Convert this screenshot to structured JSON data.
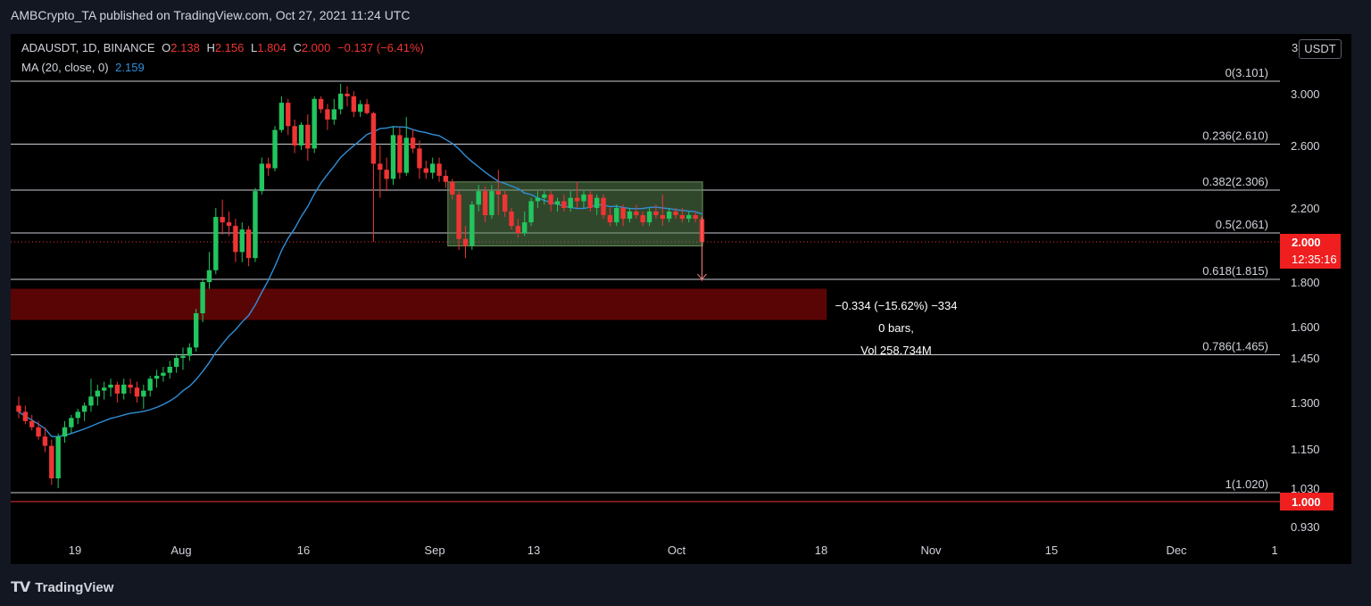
{
  "publish_line": "AMBCrypto_TA published on TradingView.com, Oct 27, 2021 11:24 UTC",
  "header": {
    "symbol": "ADAUSDT, 1D, BINANCE",
    "o_label": "O",
    "o": "2.138",
    "h_label": "H",
    "h": "2.156",
    "l_label": "L",
    "l": "1.804",
    "c_label": "C",
    "c": "2.000",
    "change": "−0.137 (−6.41%)"
  },
  "ma": {
    "label": "MA (20, close, 0)",
    "value": "2.159"
  },
  "currency_button": "USDT",
  "currency_prefix": "3",
  "price_tag": {
    "price": "2.000",
    "countdown": "12:35:16"
  },
  "support_tag": "1.000",
  "footer_brand": "TradingView",
  "colors": {
    "up": "#26a69a",
    "upbright": "#22c55e",
    "down": "#ef3434",
    "ma": "#2f8fd8",
    "zone": "#5a0505",
    "box": "#3c5a36",
    "grid": "#d1d4dc"
  },
  "chart_data": {
    "type": "candlestick",
    "symbol": "ADAUSDT",
    "interval": "1D",
    "exchange": "BINANCE",
    "yticks": [
      "3.000",
      "2.600",
      "2.200",
      "1.800",
      "1.600",
      "1.450",
      "1.300",
      "1.150",
      "1.030",
      "0.930"
    ],
    "ytick_values": [
      3.0,
      2.6,
      2.2,
      1.8,
      1.6,
      1.45,
      1.3,
      1.15,
      1.03,
      0.93
    ],
    "xticks": [
      "19",
      "Aug",
      "16",
      "Sep",
      "13",
      "Oct",
      "18",
      "Nov",
      "15",
      "Dec",
      "1"
    ],
    "fib_levels": [
      {
        "label": "0(3.101)",
        "value": 3.101
      },
      {
        "label": "0.236(2.610)",
        "value": 2.61
      },
      {
        "label": "0.382(2.306)",
        "value": 2.306
      },
      {
        "label": "0.5(2.061)",
        "value": 2.061
      },
      {
        "label": "0.618(1.815)",
        "value": 1.815
      },
      {
        "label": "0.786(1.465)",
        "value": 1.465
      },
      {
        "label": "1(1.020)",
        "value": 1.02
      }
    ],
    "support_line": 1.0,
    "current_price": 2.0,
    "range_box": {
      "from_date": "2021-09-19",
      "to_date": "2021-10-26",
      "low": 1.98,
      "high": 2.36
    },
    "demand_zone": {
      "from_date": "2021-07-15",
      "to_date": "2021-11-15",
      "low": 1.63,
      "high": 1.77
    },
    "measure": {
      "label": "−0.334 (−15.62%) −334",
      "bars": "0 bars,",
      "vol": "Vol 258.734M",
      "from": 2.15,
      "to": 1.815
    },
    "candles": [
      [
        "2021-07-15",
        1.29,
        1.32,
        1.25,
        1.27
      ],
      [
        "2021-07-16",
        1.27,
        1.29,
        1.23,
        1.24
      ],
      [
        "2021-07-17",
        1.24,
        1.26,
        1.21,
        1.22
      ],
      [
        "2021-07-18",
        1.22,
        1.24,
        1.18,
        1.19
      ],
      [
        "2021-07-19",
        1.19,
        1.22,
        1.14,
        1.16
      ],
      [
        "2021-07-20",
        1.16,
        1.18,
        1.04,
        1.06
      ],
      [
        "2021-07-21",
        1.06,
        1.2,
        1.03,
        1.19
      ],
      [
        "2021-07-22",
        1.19,
        1.24,
        1.17,
        1.22
      ],
      [
        "2021-07-23",
        1.22,
        1.26,
        1.2,
        1.25
      ],
      [
        "2021-07-24",
        1.25,
        1.28,
        1.23,
        1.27
      ],
      [
        "2021-07-25",
        1.27,
        1.3,
        1.24,
        1.29
      ],
      [
        "2021-07-26",
        1.29,
        1.38,
        1.27,
        1.32
      ],
      [
        "2021-07-27",
        1.32,
        1.36,
        1.29,
        1.34
      ],
      [
        "2021-07-28",
        1.34,
        1.37,
        1.31,
        1.35
      ],
      [
        "2021-07-29",
        1.35,
        1.38,
        1.32,
        1.36
      ],
      [
        "2021-07-30",
        1.36,
        1.37,
        1.3,
        1.33
      ],
      [
        "2021-07-31",
        1.33,
        1.38,
        1.31,
        1.36
      ],
      [
        "2021-08-01",
        1.36,
        1.38,
        1.33,
        1.35
      ],
      [
        "2021-08-02",
        1.35,
        1.37,
        1.3,
        1.32
      ],
      [
        "2021-08-03",
        1.32,
        1.36,
        1.28,
        1.34
      ],
      [
        "2021-08-04",
        1.34,
        1.39,
        1.32,
        1.38
      ],
      [
        "2021-08-05",
        1.38,
        1.41,
        1.35,
        1.39
      ],
      [
        "2021-08-06",
        1.39,
        1.42,
        1.37,
        1.4
      ],
      [
        "2021-08-07",
        1.4,
        1.44,
        1.38,
        1.42
      ],
      [
        "2021-08-08",
        1.42,
        1.47,
        1.4,
        1.45
      ],
      [
        "2021-08-09",
        1.45,
        1.5,
        1.41,
        1.46
      ],
      [
        "2021-08-10",
        1.46,
        1.52,
        1.44,
        1.5
      ],
      [
        "2021-08-11",
        1.5,
        1.68,
        1.48,
        1.66
      ],
      [
        "2021-08-12",
        1.66,
        1.82,
        1.62,
        1.8
      ],
      [
        "2021-08-13",
        1.8,
        1.95,
        1.77,
        1.86
      ],
      [
        "2021-08-14",
        1.86,
        2.2,
        1.84,
        2.15
      ],
      [
        "2021-08-15",
        2.15,
        2.25,
        2.05,
        2.12
      ],
      [
        "2021-08-16",
        2.12,
        2.18,
        2.04,
        2.1
      ],
      [
        "2021-08-17",
        2.1,
        2.14,
        1.9,
        1.95
      ],
      [
        "2021-08-18",
        1.95,
        2.12,
        1.9,
        2.08
      ],
      [
        "2021-08-19",
        2.08,
        2.1,
        1.88,
        1.92
      ],
      [
        "2021-08-20",
        1.92,
        2.32,
        1.9,
        2.3
      ],
      [
        "2021-08-21",
        2.3,
        2.52,
        2.28,
        2.48
      ],
      [
        "2021-08-22",
        2.48,
        2.52,
        2.4,
        2.45
      ],
      [
        "2021-08-23",
        2.45,
        2.75,
        2.43,
        2.72
      ],
      [
        "2021-08-24",
        2.72,
        2.98,
        2.7,
        2.93
      ],
      [
        "2021-08-25",
        2.93,
        2.96,
        2.68,
        2.75
      ],
      [
        "2021-08-26",
        2.75,
        2.8,
        2.55,
        2.6
      ],
      [
        "2021-08-27",
        2.6,
        2.78,
        2.57,
        2.76
      ],
      [
        "2021-08-28",
        2.76,
        2.84,
        2.5,
        2.58
      ],
      [
        "2021-08-29",
        2.58,
        2.98,
        2.55,
        2.96
      ],
      [
        "2021-08-30",
        2.96,
        2.98,
        2.85,
        2.88
      ],
      [
        "2021-08-31",
        2.88,
        2.92,
        2.72,
        2.8
      ],
      [
        "2021-09-01",
        2.8,
        2.96,
        2.76,
        2.88
      ],
      [
        "2021-09-02",
        2.88,
        3.08,
        2.84,
        3.0
      ],
      [
        "2021-09-03",
        3.0,
        3.06,
        2.9,
        2.98
      ],
      [
        "2021-09-04",
        2.98,
        3.02,
        2.82,
        2.86
      ],
      [
        "2021-09-05",
        2.86,
        2.95,
        2.82,
        2.92
      ],
      [
        "2021-09-06",
        2.92,
        2.96,
        2.84,
        2.85
      ],
      [
        "2021-09-07",
        2.85,
        2.86,
        2.0,
        2.48
      ],
      [
        "2021-09-08",
        2.48,
        2.6,
        2.26,
        2.44
      ],
      [
        "2021-09-09",
        2.44,
        2.52,
        2.3,
        2.38
      ],
      [
        "2021-09-10",
        2.38,
        2.75,
        2.34,
        2.68
      ],
      [
        "2021-09-11",
        2.68,
        2.74,
        2.38,
        2.42
      ],
      [
        "2021-09-12",
        2.42,
        2.82,
        2.4,
        2.66
      ],
      [
        "2021-09-13",
        2.66,
        2.72,
        2.55,
        2.58
      ],
      [
        "2021-09-14",
        2.58,
        2.64,
        2.38,
        2.45
      ],
      [
        "2021-09-15",
        2.45,
        2.5,
        2.38,
        2.42
      ],
      [
        "2021-09-16",
        2.42,
        2.52,
        2.38,
        2.48
      ],
      [
        "2021-09-17",
        2.48,
        2.52,
        2.36,
        2.4
      ],
      [
        "2021-09-18",
        2.4,
        2.44,
        2.32,
        2.36
      ],
      [
        "2021-09-19",
        2.36,
        2.38,
        2.25,
        2.28
      ],
      [
        "2021-09-20",
        2.28,
        2.3,
        1.96,
        2.02
      ],
      [
        "2021-09-21",
        2.02,
        2.1,
        1.92,
        1.98
      ],
      [
        "2021-09-22",
        1.98,
        2.24,
        1.96,
        2.22
      ],
      [
        "2021-09-23",
        2.22,
        2.34,
        2.18,
        2.3
      ],
      [
        "2021-09-24",
        2.3,
        2.33,
        2.12,
        2.16
      ],
      [
        "2021-09-25",
        2.16,
        2.34,
        2.14,
        2.3
      ],
      [
        "2021-09-26",
        2.3,
        2.44,
        2.16,
        2.28
      ],
      [
        "2021-09-27",
        2.28,
        2.3,
        2.15,
        2.18
      ],
      [
        "2021-09-28",
        2.18,
        2.2,
        2.08,
        2.1
      ],
      [
        "2021-09-29",
        2.1,
        2.14,
        2.03,
        2.06
      ],
      [
        "2021-09-30",
        2.06,
        2.18,
        2.04,
        2.12
      ],
      [
        "2021-10-01",
        2.12,
        2.26,
        2.1,
        2.24
      ],
      [
        "2021-10-02",
        2.24,
        2.3,
        2.2,
        2.26
      ],
      [
        "2021-10-03",
        2.26,
        2.3,
        2.22,
        2.28
      ],
      [
        "2021-10-04",
        2.28,
        2.3,
        2.18,
        2.22
      ],
      [
        "2021-10-05",
        2.22,
        2.26,
        2.18,
        2.24
      ],
      [
        "2021-10-06",
        2.24,
        2.28,
        2.18,
        2.2
      ],
      [
        "2021-10-07",
        2.2,
        2.3,
        2.18,
        2.26
      ],
      [
        "2021-10-08",
        2.26,
        2.36,
        2.2,
        2.24
      ],
      [
        "2021-10-09",
        2.24,
        2.3,
        2.2,
        2.28
      ],
      [
        "2021-10-10",
        2.28,
        2.3,
        2.18,
        2.2
      ],
      [
        "2021-10-11",
        2.2,
        2.28,
        2.16,
        2.26
      ],
      [
        "2021-10-12",
        2.26,
        2.28,
        2.14,
        2.16
      ],
      [
        "2021-10-13",
        2.16,
        2.2,
        2.1,
        2.12
      ],
      [
        "2021-10-14",
        2.12,
        2.22,
        2.1,
        2.2
      ],
      [
        "2021-10-15",
        2.2,
        2.22,
        2.1,
        2.14
      ],
      [
        "2021-10-16",
        2.14,
        2.2,
        2.12,
        2.18
      ],
      [
        "2021-10-17",
        2.18,
        2.22,
        2.14,
        2.16
      ],
      [
        "2021-10-18",
        2.16,
        2.18,
        2.1,
        2.12
      ],
      [
        "2021-10-19",
        2.12,
        2.2,
        2.1,
        2.18
      ],
      [
        "2021-10-20",
        2.18,
        2.22,
        2.14,
        2.16
      ],
      [
        "2021-10-21",
        2.16,
        2.28,
        2.1,
        2.14
      ],
      [
        "2021-10-22",
        2.14,
        2.2,
        2.12,
        2.18
      ],
      [
        "2021-10-23",
        2.18,
        2.2,
        2.14,
        2.16
      ],
      [
        "2021-10-24",
        2.16,
        2.2,
        2.12,
        2.14
      ],
      [
        "2021-10-25",
        2.14,
        2.18,
        2.12,
        2.16
      ],
      [
        "2021-10-26",
        2.16,
        2.18,
        2.12,
        2.14
      ],
      [
        "2021-10-27",
        2.138,
        2.156,
        1.804,
        2.0
      ]
    ]
  }
}
